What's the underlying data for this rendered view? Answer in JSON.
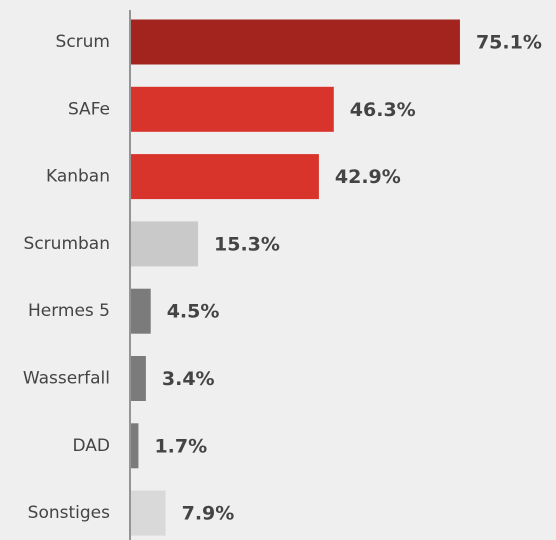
{
  "chart_data": {
    "type": "bar",
    "orientation": "horizontal",
    "categories": [
      "Scrum",
      "SAFe",
      "Kanban",
      "Scrumban",
      "Hermes 5",
      "Wasserfall",
      "DAD",
      "Sonstiges"
    ],
    "values": [
      75.1,
      46.3,
      42.9,
      15.3,
      4.5,
      3.4,
      1.7,
      7.9
    ],
    "value_labels": [
      "75.1%",
      "46.3%",
      "42.9%",
      "15.3%",
      "4.5%",
      "3.4%",
      "1.7%",
      "7.9%"
    ],
    "colors": [
      "#a3241f",
      "#d9342b",
      "#d9342b",
      "#c9c9c9",
      "#7b7b7b",
      "#7b7b7b",
      "#7b7b7b",
      "#d9d9d9"
    ]
  }
}
